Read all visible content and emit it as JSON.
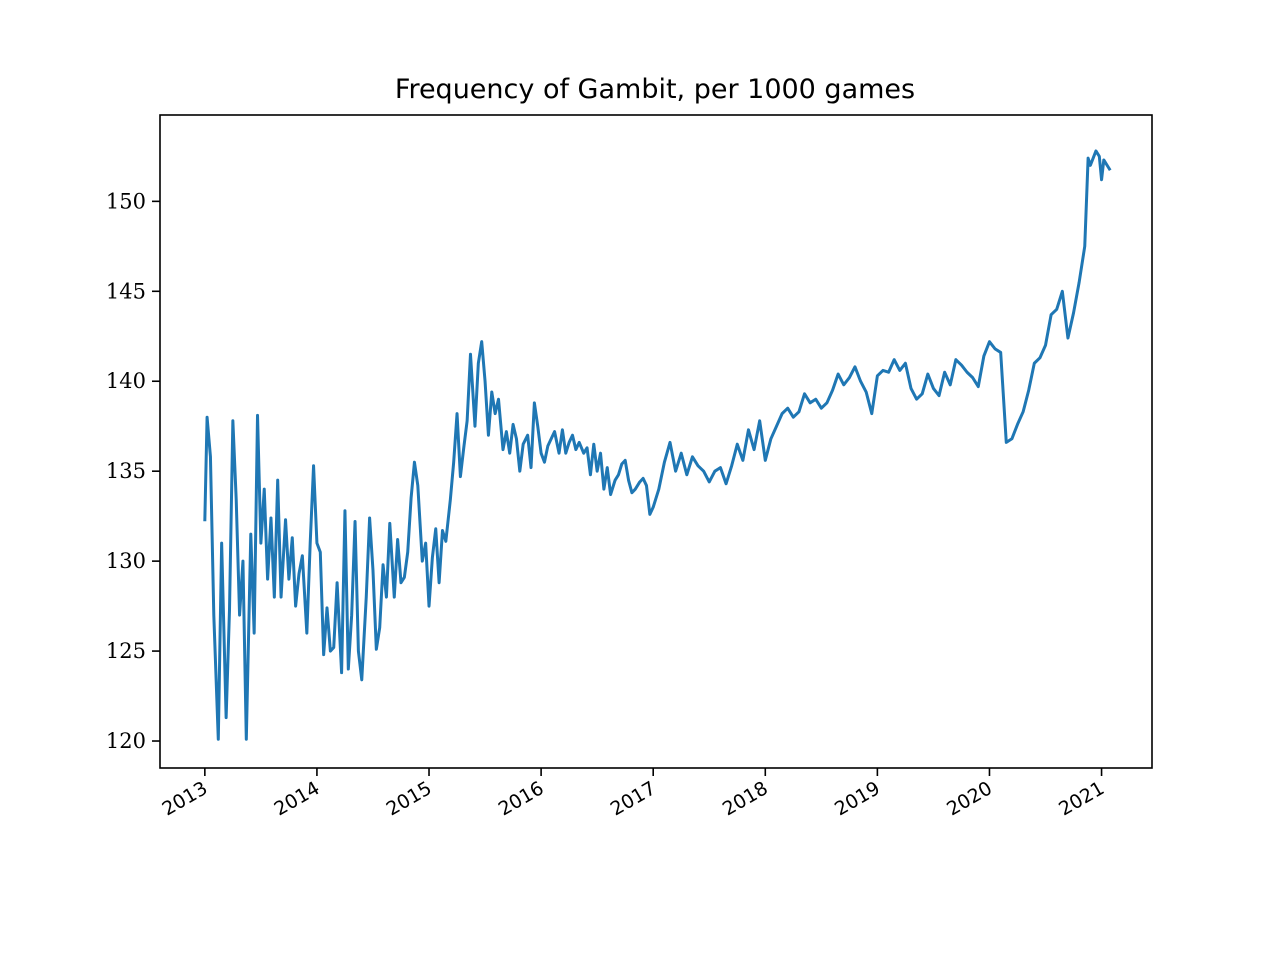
{
  "chart_data": {
    "type": "line",
    "title": "Frequency of Gambit, per 1000 games",
    "xlabel": "",
    "ylabel": "",
    "xlim": [
      2012.6,
      2021.45
    ],
    "ylim": [
      118.5,
      154.8
    ],
    "grid": false,
    "yticks": [
      120,
      125,
      130,
      135,
      140,
      145,
      150
    ],
    "xticks": [
      2013,
      2014,
      2015,
      2016,
      2017,
      2018,
      2019,
      2020,
      2021
    ],
    "x_tick_labels": [
      "2013",
      "2014",
      "2015",
      "2016",
      "2017",
      "2018",
      "2019",
      "2020",
      "2021"
    ],
    "series_color": "#1f77b4",
    "series": [
      {
        "x": [
          2013.0,
          2013.02,
          2013.05,
          2013.08,
          2013.12,
          2013.15,
          2013.19,
          2013.22,
          2013.25,
          2013.28,
          2013.31,
          2013.34,
          2013.37,
          2013.41,
          2013.44,
          2013.47,
          2013.5,
          2013.53,
          2013.56,
          2013.59,
          2013.62,
          2013.65,
          2013.68,
          2013.72,
          2013.75,
          2013.78,
          2013.81,
          2013.84,
          2013.87,
          2013.91,
          2013.94,
          2013.97,
          2014.0,
          2014.03,
          2014.06,
          2014.09,
          2014.12,
          2014.15,
          2014.18,
          2014.22,
          2014.25,
          2014.28,
          2014.31,
          2014.34,
          2014.37,
          2014.4,
          2014.44,
          2014.47,
          2014.5,
          2014.53,
          2014.56,
          2014.59,
          2014.62,
          2014.65,
          2014.69,
          2014.72,
          2014.75,
          2014.78,
          2014.81,
          2014.84,
          2014.87,
          2014.9,
          2014.94,
          2014.97,
          2015.0,
          2015.03,
          2015.06,
          2015.09,
          2015.12,
          2015.15,
          2015.19,
          2015.22,
          2015.25,
          2015.28,
          2015.31,
          2015.34,
          2015.37,
          2015.41,
          2015.44,
          2015.47,
          2015.5,
          2015.53,
          2015.56,
          2015.59,
          2015.62,
          2015.66,
          2015.69,
          2015.72,
          2015.75,
          2015.78,
          2015.81,
          2015.84,
          2015.88,
          2015.91,
          2015.94,
          2015.97,
          2016.0,
          2016.03,
          2016.06,
          2016.09,
          2016.12,
          2016.16,
          2016.19,
          2016.22,
          2016.25,
          2016.28,
          2016.31,
          2016.34,
          2016.38,
          2016.41,
          2016.44,
          2016.47,
          2016.5,
          2016.53,
          2016.56,
          2016.59,
          2016.62,
          2016.66,
          2016.69,
          2016.72,
          2016.75,
          2016.78,
          2016.81,
          2016.84,
          2016.88,
          2016.91,
          2016.94,
          2016.97,
          2017.0,
          2017.05,
          2017.1,
          2017.15,
          2017.2,
          2017.25,
          2017.3,
          2017.35,
          2017.4,
          2017.45,
          2017.5,
          2017.55,
          2017.6,
          2017.65,
          2017.7,
          2017.75,
          2017.8,
          2017.85,
          2017.9,
          2017.95,
          2018.0,
          2018.05,
          2018.1,
          2018.15,
          2018.2,
          2018.25,
          2018.3,
          2018.35,
          2018.4,
          2018.45,
          2018.5,
          2018.55,
          2018.6,
          2018.65,
          2018.7,
          2018.75,
          2018.8,
          2018.85,
          2018.9,
          2018.95,
          2019.0,
          2019.05,
          2019.1,
          2019.15,
          2019.2,
          2019.25,
          2019.3,
          2019.35,
          2019.4,
          2019.45,
          2019.5,
          2019.55,
          2019.6,
          2019.65,
          2019.7,
          2019.75,
          2019.8,
          2019.85,
          2019.9,
          2019.95,
          2020.0,
          2020.05,
          2020.1,
          2020.15,
          2020.2,
          2020.25,
          2020.3,
          2020.35,
          2020.4,
          2020.45,
          2020.5,
          2020.55,
          2020.6,
          2020.65,
          2020.7,
          2020.75,
          2020.8,
          2020.85,
          2020.88,
          2020.9,
          2020.95,
          2020.98,
          2021.0,
          2021.02,
          2021.05,
          2021.07
        ],
        "values": [
          132.3,
          138.0,
          135.8,
          127.0,
          120.1,
          131.0,
          121.3,
          127.3,
          137.8,
          133.4,
          127.0,
          130.0,
          120.1,
          131.5,
          126.0,
          138.1,
          131.0,
          134.0,
          129.0,
          132.4,
          128.0,
          134.5,
          128.0,
          132.3,
          129.0,
          131.3,
          127.5,
          129.3,
          130.3,
          126.0,
          131.0,
          135.3,
          131.0,
          130.5,
          124.8,
          127.4,
          125.0,
          125.2,
          128.8,
          123.8,
          132.8,
          124.0,
          127.0,
          132.2,
          125.0,
          123.4,
          128.0,
          132.4,
          129.5,
          125.1,
          126.3,
          129.8,
          128.0,
          132.1,
          128.0,
          131.2,
          128.8,
          129.1,
          130.5,
          133.5,
          135.5,
          134.2,
          130.0,
          131.0,
          127.5,
          130.2,
          131.8,
          128.8,
          131.7,
          131.1,
          133.4,
          135.5,
          138.2,
          134.7,
          136.3,
          137.8,
          141.5,
          137.5,
          141.0,
          142.2,
          140.0,
          137.0,
          139.4,
          138.2,
          139.0,
          136.2,
          137.2,
          136.0,
          137.6,
          136.8,
          135.0,
          136.5,
          137.0,
          135.2,
          138.8,
          137.5,
          136.0,
          135.5,
          136.4,
          136.8,
          137.2,
          136.0,
          137.3,
          136.0,
          136.6,
          137.0,
          136.2,
          136.6,
          136.0,
          136.3,
          134.8,
          136.5,
          135.0,
          136.0,
          134.0,
          135.2,
          133.7,
          134.5,
          134.8,
          135.4,
          135.6,
          134.5,
          133.8,
          134.0,
          134.4,
          134.6,
          134.2,
          132.6,
          133.0,
          134.0,
          135.5,
          136.6,
          135.0,
          136.0,
          134.8,
          135.8,
          135.3,
          135.0,
          134.4,
          135.0,
          135.2,
          134.3,
          135.3,
          136.5,
          135.6,
          137.3,
          136.2,
          137.8,
          135.6,
          136.8,
          137.5,
          138.2,
          138.5,
          138.0,
          138.3,
          139.3,
          138.8,
          139.0,
          138.5,
          138.8,
          139.5,
          140.4,
          139.8,
          140.2,
          140.8,
          140.0,
          139.4,
          138.2,
          140.3,
          140.6,
          140.5,
          141.2,
          140.6,
          141.0,
          139.6,
          139.0,
          139.3,
          140.4,
          139.6,
          139.2,
          140.5,
          139.8,
          141.2,
          140.9,
          140.5,
          140.2,
          139.7,
          141.4,
          142.2,
          141.8,
          141.6,
          136.6,
          136.8,
          137.6,
          138.3,
          139.5,
          141.0,
          141.3,
          142.0,
          143.7,
          144.0,
          145.0,
          142.4,
          143.8,
          145.5,
          147.5,
          152.4,
          152.0,
          152.8,
          152.5,
          151.2,
          152.3,
          152.0,
          151.8
        ]
      }
    ]
  }
}
